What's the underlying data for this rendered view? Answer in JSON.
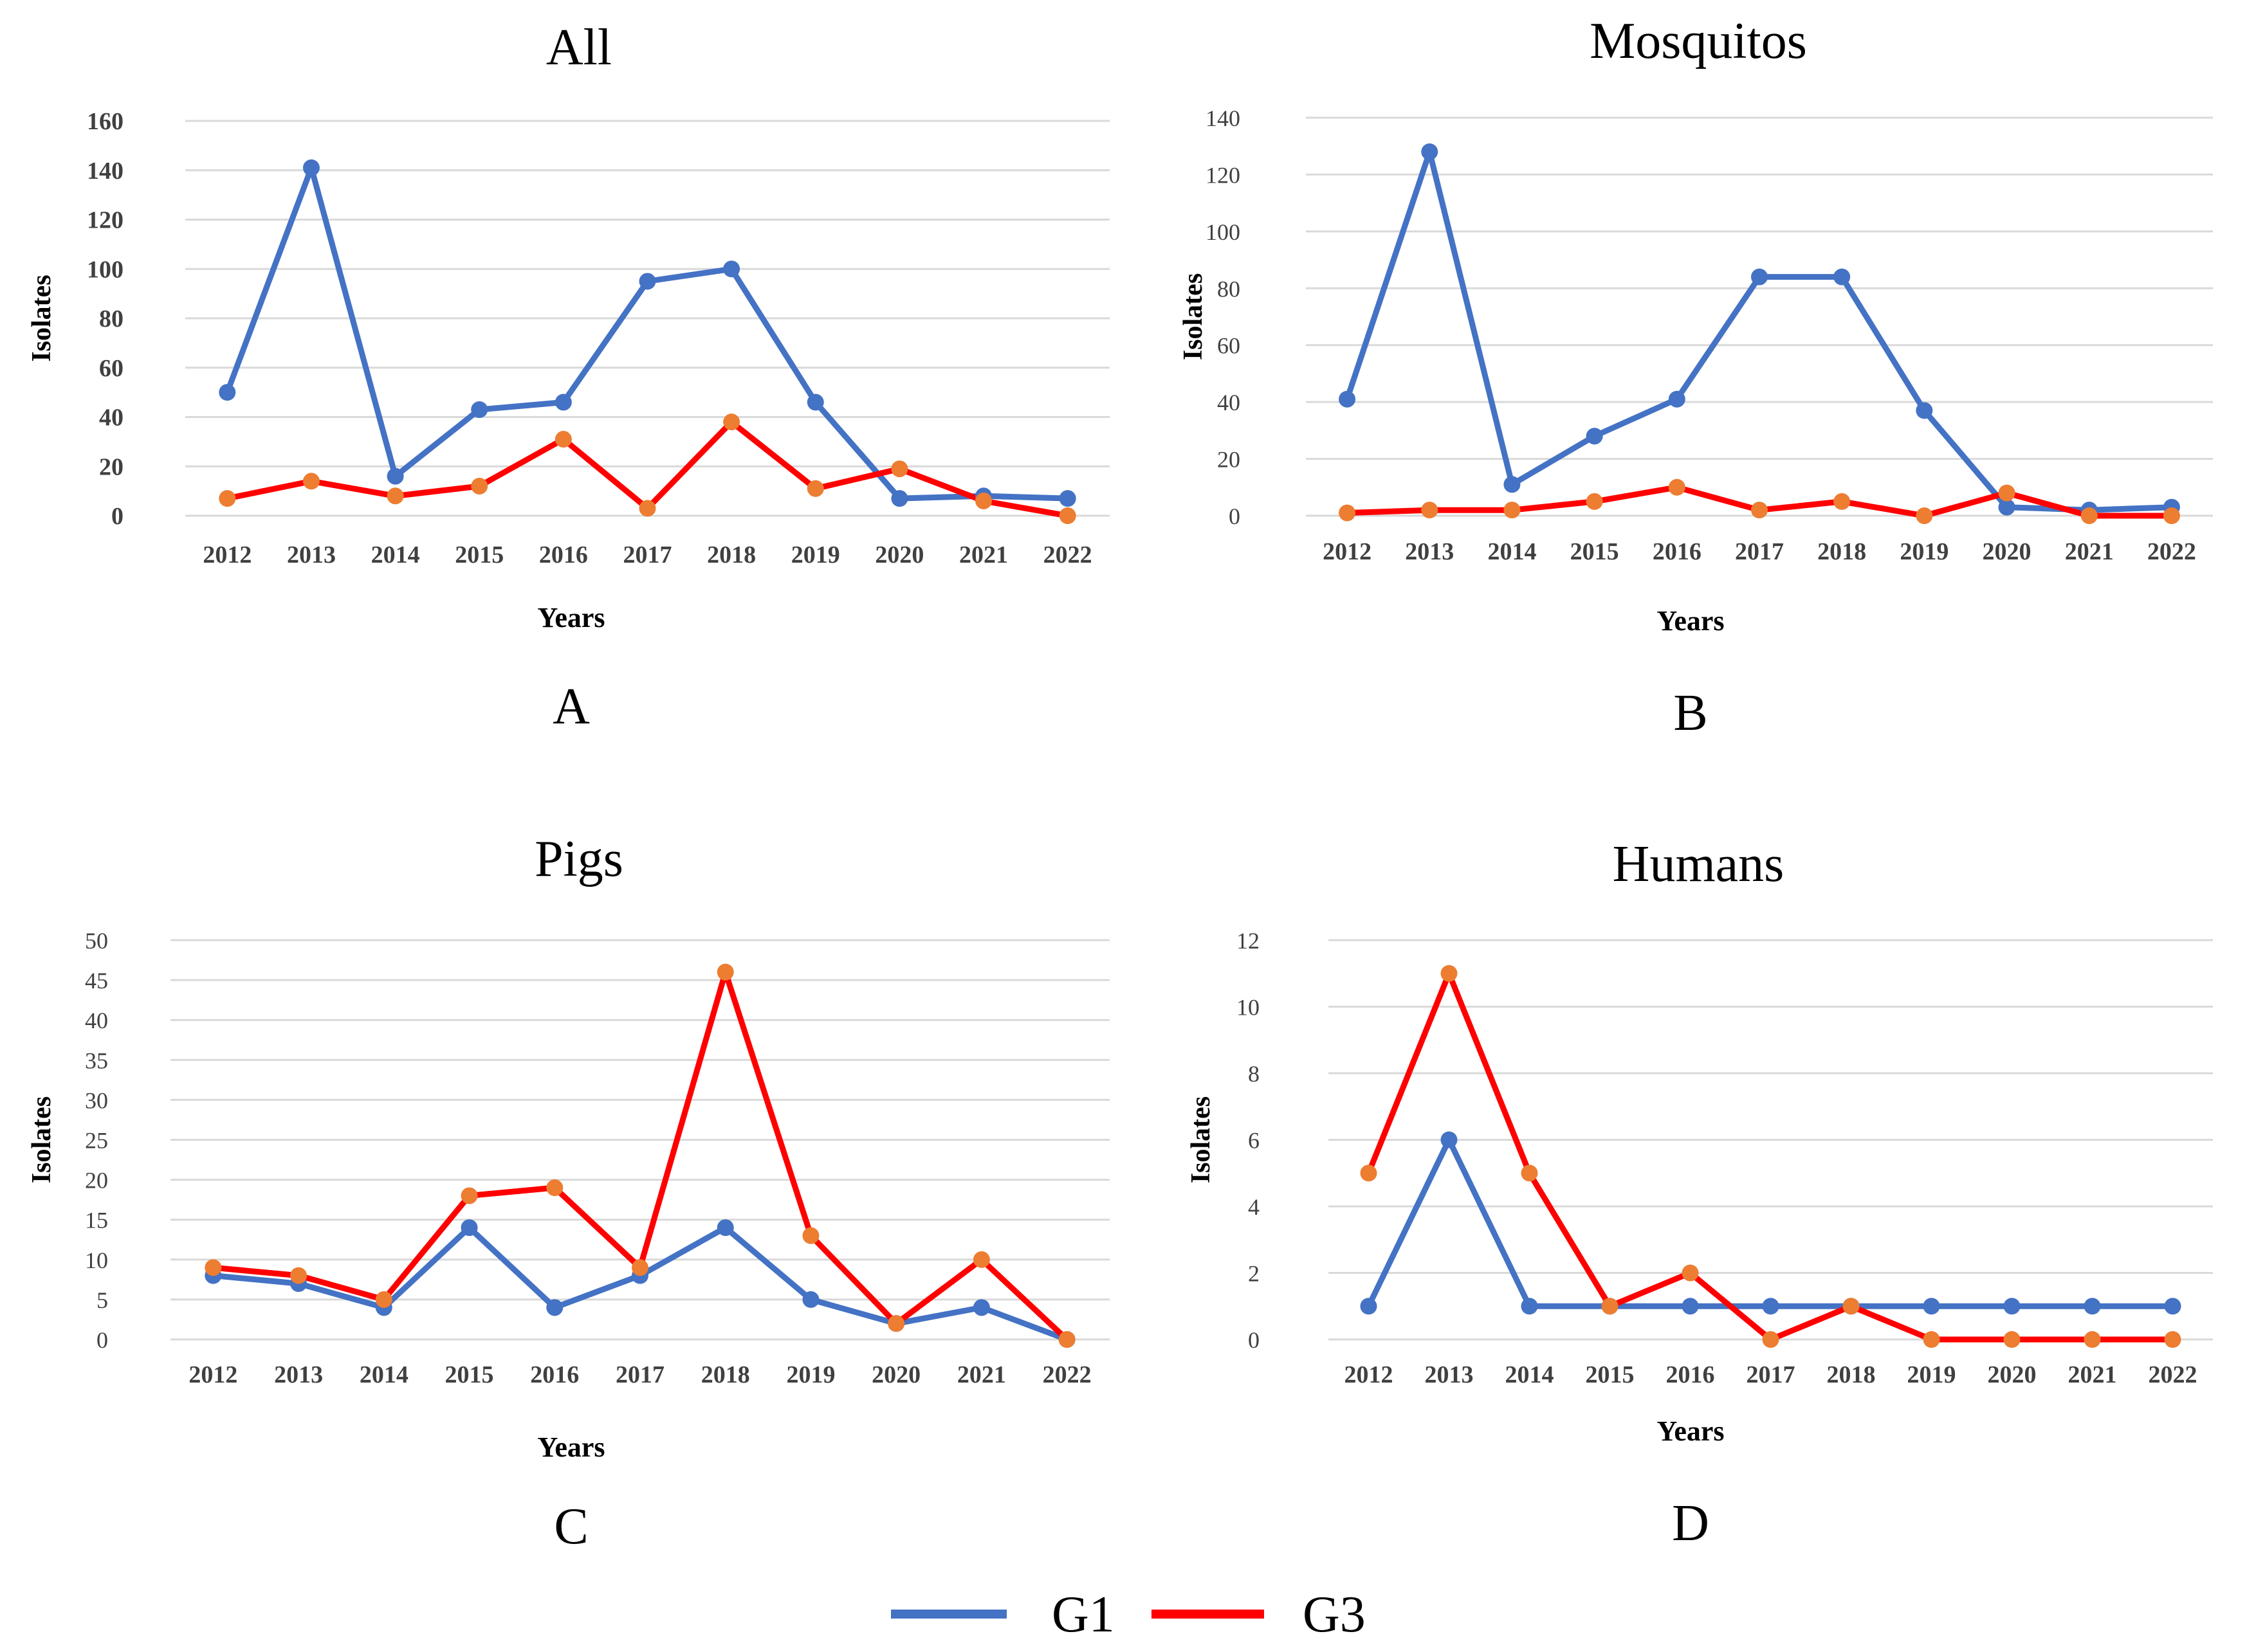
{
  "figure": {
    "legend": [
      {
        "name": "G1",
        "color": "#4472C4"
      },
      {
        "name": "G3",
        "color": "#FF0000"
      }
    ]
  },
  "colors": {
    "g1_line": "#4472C4",
    "g1_marker": "#4472C4",
    "g3_line": "#FF0000",
    "g3_marker": "#ED7D31",
    "grid": "#D9D9D9",
    "tick_text": "#404040"
  },
  "chart_data": [
    {
      "type": "line",
      "panel_letter": "A",
      "title": "All",
      "xlabel": "Years",
      "ylabel": "Isolates",
      "categories": [
        "2012",
        "2013",
        "2014",
        "2015",
        "2016",
        "2017",
        "2018",
        "2019",
        "2020",
        "2021",
        "2022"
      ],
      "ylim": [
        0,
        160
      ],
      "yticks": [
        0,
        20,
        40,
        60,
        80,
        100,
        120,
        140,
        160
      ],
      "grid": true,
      "tick_style": "bold",
      "series": [
        {
          "name": "G1",
          "values": [
            50,
            141,
            16,
            43,
            46,
            95,
            100,
            46,
            7,
            8,
            7
          ]
        },
        {
          "name": "G3",
          "values": [
            7,
            14,
            8,
            12,
            31,
            3,
            38,
            11,
            19,
            6,
            0
          ]
        }
      ]
    },
    {
      "type": "line",
      "panel_letter": "B",
      "title": "Mosquitos",
      "xlabel": "Years",
      "ylabel": "Isolates",
      "categories": [
        "2012",
        "2013",
        "2014",
        "2015",
        "2016",
        "2017",
        "2018",
        "2019",
        "2020",
        "2021",
        "2022"
      ],
      "ylim": [
        0,
        140
      ],
      "yticks": [
        0,
        20,
        40,
        60,
        80,
        100,
        120,
        140
      ],
      "grid": true,
      "tick_style": "normal",
      "series": [
        {
          "name": "G1",
          "values": [
            41,
            128,
            11,
            28,
            41,
            84,
            84,
            37,
            3,
            2,
            3
          ]
        },
        {
          "name": "G3",
          "values": [
            1,
            2,
            2,
            5,
            10,
            2,
            5,
            0,
            8,
            0,
            0
          ]
        }
      ]
    },
    {
      "type": "line",
      "panel_letter": "C",
      "title": "Pigs",
      "xlabel": "Years",
      "ylabel": "Isolates",
      "categories": [
        "2012",
        "2013",
        "2014",
        "2015",
        "2016",
        "2017",
        "2018",
        "2019",
        "2020",
        "2021",
        "2022"
      ],
      "ylim": [
        0,
        50
      ],
      "yticks": [
        0,
        5,
        10,
        15,
        20,
        25,
        30,
        35,
        40,
        45,
        50
      ],
      "grid": true,
      "tick_style": "normal",
      "series": [
        {
          "name": "G1",
          "values": [
            8,
            7,
            4,
            14,
            4,
            8,
            14,
            5,
            2,
            4,
            0
          ]
        },
        {
          "name": "G3",
          "values": [
            9,
            8,
            5,
            18,
            19,
            9,
            46,
            13,
            2,
            10,
            0
          ]
        }
      ]
    },
    {
      "type": "line",
      "panel_letter": "D",
      "title": "Humans",
      "xlabel": "Years",
      "ylabel": "Isolates",
      "categories": [
        "2012",
        "2013",
        "2014",
        "2015",
        "2016",
        "2017",
        "2018",
        "2019",
        "2020",
        "2021",
        "2022"
      ],
      "ylim": [
        0,
        12
      ],
      "yticks": [
        0,
        2,
        4,
        6,
        8,
        10,
        12
      ],
      "grid": true,
      "tick_style": "normal",
      "series": [
        {
          "name": "G1",
          "values": [
            1,
            6,
            1,
            1,
            1,
            1,
            1,
            1,
            1,
            1,
            1
          ]
        },
        {
          "name": "G3",
          "values": [
            5,
            11,
            5,
            1,
            2,
            0,
            1,
            0,
            0,
            0,
            0
          ]
        }
      ]
    }
  ]
}
